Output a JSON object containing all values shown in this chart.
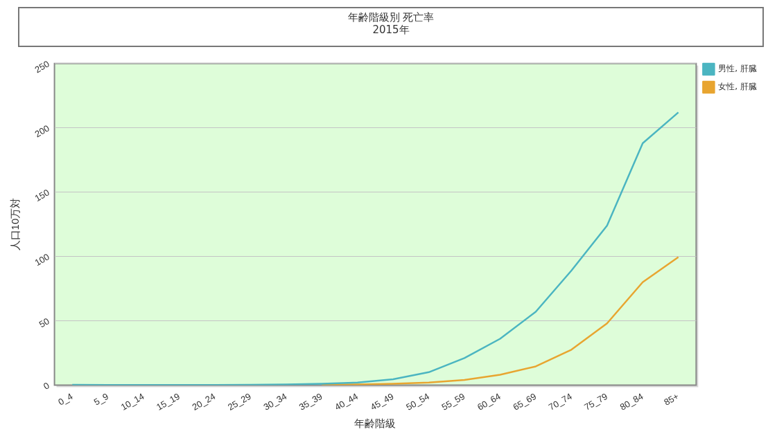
{
  "chart_data": {
    "type": "line",
    "title": "年齢階級別 死亡率",
    "subtitle": "2015年",
    "xlabel": "年齢階級",
    "ylabel": "人口10万対",
    "categories": [
      "0_4",
      "5_9",
      "10_14",
      "15_19",
      "20_24",
      "25_29",
      "30_34",
      "35_39",
      "40_44",
      "45_49",
      "50_54",
      "55_59",
      "60_64",
      "65_69",
      "70_74",
      "75_79",
      "80_84",
      "85+"
    ],
    "series": [
      {
        "name": "男性, 肝臓",
        "color": "#4bb5c1",
        "values": [
          0.2,
          0.1,
          0.1,
          0.1,
          0.1,
          0.2,
          0.5,
          1,
          2,
          4.5,
          10,
          21,
          36,
          57,
          89,
          124,
          188,
          212
        ]
      },
      {
        "name": "女性, 肝臓",
        "color": "#e8a530",
        "values": [
          null,
          null,
          null,
          null,
          null,
          null,
          null,
          0.3,
          0.5,
          1,
          2,
          4,
          8,
          14.5,
          27.5,
          48,
          80,
          99.5
        ]
      }
    ],
    "ylim": [
      0,
      250
    ],
    "yticks": [
      0,
      50,
      100,
      150,
      200,
      250
    ],
    "grid": "y",
    "legend": "top right",
    "marker": "none",
    "line_style": "solid"
  }
}
